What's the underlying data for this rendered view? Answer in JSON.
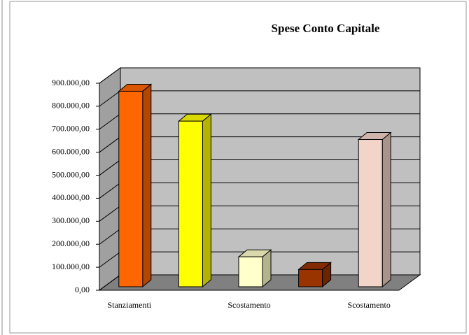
{
  "chart_data": {
    "type": "bar3d",
    "title": "Spese Conto Capitale",
    "categories": [
      "Stanziamenti",
      null,
      "Scostamento",
      null,
      "Scostamento"
    ],
    "values": [
      850000,
      720000,
      130000,
      75000,
      640000
    ],
    "colors": [
      "#ff6600",
      "#ffff00",
      "#ffffcc",
      "#993300",
      "#f2d4c8"
    ],
    "ylim": [
      0,
      900000
    ],
    "yticks": [
      {
        "value": 0,
        "label": "0,00"
      },
      {
        "value": 100000,
        "label": "100.000,00"
      },
      {
        "value": 200000,
        "label": "200.000,00"
      },
      {
        "value": 300000,
        "label": "300.000,00"
      },
      {
        "value": 400000,
        "label": "400.000,00"
      },
      {
        "value": 500000,
        "label": "500.000,00"
      },
      {
        "value": 600000,
        "label": "600.000,00"
      },
      {
        "value": 700000,
        "label": "700.000,00"
      },
      {
        "value": 800000,
        "label": "800.000,00"
      },
      {
        "value": 900000,
        "label": "900.000,00"
      }
    ],
    "grid": true
  }
}
